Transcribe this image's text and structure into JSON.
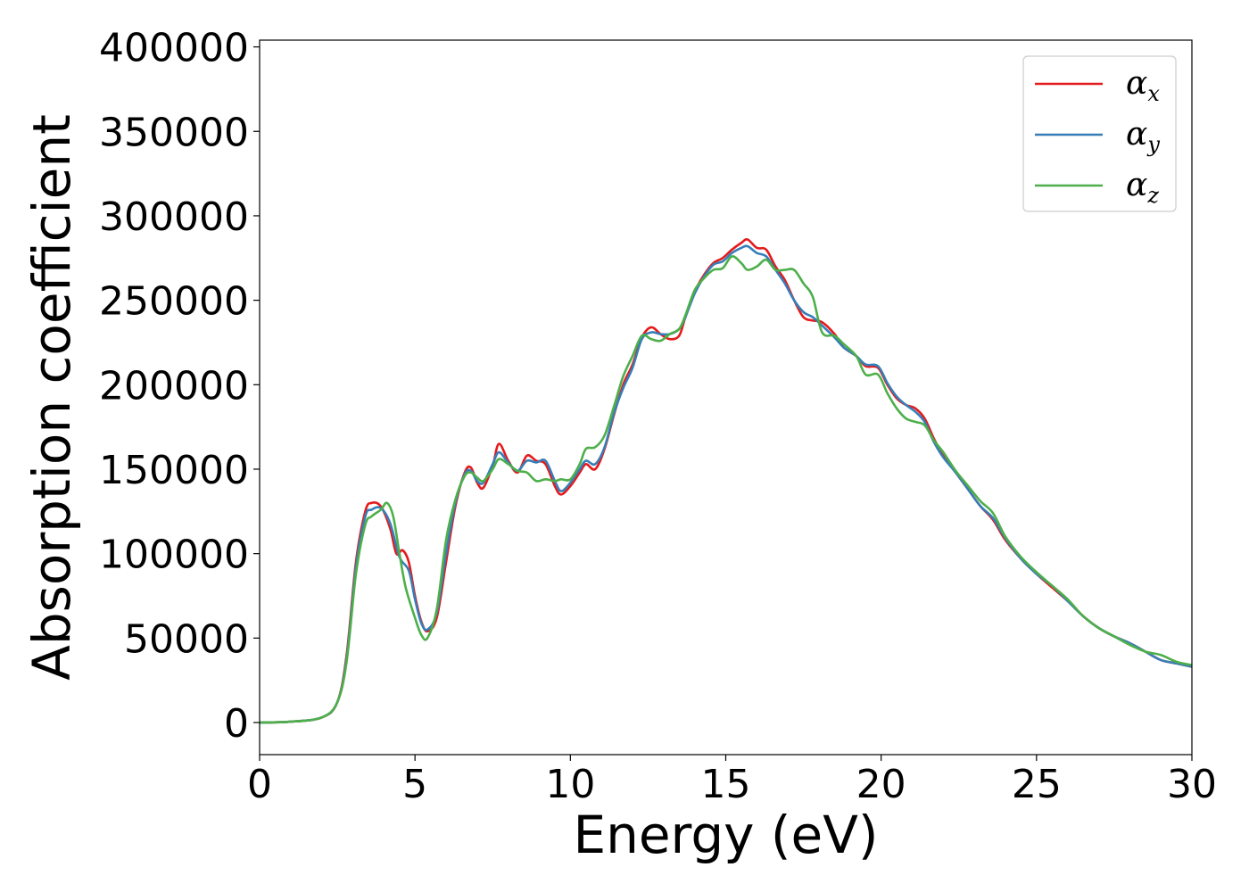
{
  "chart_data": {
    "type": "line",
    "xlabel": "Energy (eV)",
    "ylabel": "Absorption coefficient",
    "xlim": [
      0,
      30
    ],
    "ylim": [
      -19000,
      404000
    ],
    "xticks": [
      0,
      5,
      10,
      15,
      20,
      25,
      30
    ],
    "yticks": [
      0,
      50000,
      100000,
      150000,
      200000,
      250000,
      300000,
      350000,
      400000
    ],
    "grid": false,
    "legend_position": "top-right",
    "series": [
      {
        "name": "α",
        "subscript": "x",
        "color": "#e41a1c",
        "points": [
          [
            0,
            0
          ],
          [
            1,
            500
          ],
          [
            2,
            3000
          ],
          [
            2.5,
            12000
          ],
          [
            2.8,
            40000
          ],
          [
            3.1,
            95000
          ],
          [
            3.4,
            125000
          ],
          [
            3.6,
            130000
          ],
          [
            3.9,
            128000
          ],
          [
            4.2,
            115000
          ],
          [
            4.4,
            100000
          ],
          [
            4.6,
            102000
          ],
          [
            4.8,
            95000
          ],
          [
            5.0,
            75000
          ],
          [
            5.2,
            60000
          ],
          [
            5.4,
            54000
          ],
          [
            5.7,
            62000
          ],
          [
            6.0,
            95000
          ],
          [
            6.3,
            128000
          ],
          [
            6.6,
            148000
          ],
          [
            6.8,
            151000
          ],
          [
            7.0,
            142000
          ],
          [
            7.2,
            139000
          ],
          [
            7.5,
            152000
          ],
          [
            7.7,
            165000
          ],
          [
            8.0,
            155000
          ],
          [
            8.3,
            148000
          ],
          [
            8.6,
            158000
          ],
          [
            8.9,
            155000
          ],
          [
            9.2,
            153000
          ],
          [
            9.5,
            140000
          ],
          [
            9.7,
            135000
          ],
          [
            10.0,
            140000
          ],
          [
            10.3,
            148000
          ],
          [
            10.5,
            153000
          ],
          [
            10.8,
            150000
          ],
          [
            11.1,
            162000
          ],
          [
            11.4,
            182000
          ],
          [
            11.7,
            200000
          ],
          [
            12.0,
            212000
          ],
          [
            12.3,
            228000
          ],
          [
            12.6,
            234000
          ],
          [
            12.9,
            230000
          ],
          [
            13.2,
            227000
          ],
          [
            13.5,
            229000
          ],
          [
            13.7,
            240000
          ],
          [
            14.0,
            255000
          ],
          [
            14.3,
            265000
          ],
          [
            14.6,
            272000
          ],
          [
            14.9,
            275000
          ],
          [
            15.2,
            280000
          ],
          [
            15.5,
            284000
          ],
          [
            15.7,
            286000
          ],
          [
            16.0,
            281000
          ],
          [
            16.3,
            280000
          ],
          [
            16.6,
            270000
          ],
          [
            16.9,
            262000
          ],
          [
            17.2,
            250000
          ],
          [
            17.5,
            240000
          ],
          [
            17.8,
            238000
          ],
          [
            18.1,
            237000
          ],
          [
            18.5,
            230000
          ],
          [
            18.8,
            222000
          ],
          [
            19.2,
            217000
          ],
          [
            19.5,
            211000
          ],
          [
            19.9,
            210000
          ],
          [
            20.2,
            200000
          ],
          [
            20.5,
            192000
          ],
          [
            20.8,
            188000
          ],
          [
            21.1,
            186000
          ],
          [
            21.4,
            180000
          ],
          [
            21.7,
            168000
          ],
          [
            22.0,
            158000
          ],
          [
            22.4,
            148000
          ],
          [
            22.8,
            138000
          ],
          [
            23.2,
            128000
          ],
          [
            23.6,
            120000
          ],
          [
            24.0,
            108000
          ],
          [
            24.5,
            97000
          ],
          [
            25.0,
            88000
          ],
          [
            25.5,
            80000
          ],
          [
            26.0,
            72000
          ],
          [
            26.5,
            63000
          ],
          [
            27.0,
            56000
          ],
          [
            27.5,
            51000
          ],
          [
            28.0,
            47000
          ],
          [
            28.5,
            42000
          ],
          [
            29.0,
            37000
          ],
          [
            29.5,
            35000
          ],
          [
            30.0,
            33000
          ]
        ]
      },
      {
        "name": "α",
        "subscript": "y",
        "color": "#377eb8",
        "points": [
          [
            0,
            0
          ],
          [
            1,
            500
          ],
          [
            2,
            3000
          ],
          [
            2.5,
            12000
          ],
          [
            2.8,
            38000
          ],
          [
            3.1,
            92000
          ],
          [
            3.4,
            122000
          ],
          [
            3.6,
            126000
          ],
          [
            3.9,
            127000
          ],
          [
            4.2,
            118000
          ],
          [
            4.5,
            98000
          ],
          [
            4.8,
            90000
          ],
          [
            5.0,
            73000
          ],
          [
            5.2,
            59000
          ],
          [
            5.4,
            55000
          ],
          [
            5.7,
            65000
          ],
          [
            6.0,
            100000
          ],
          [
            6.3,
            130000
          ],
          [
            6.6,
            147000
          ],
          [
            6.8,
            149000
          ],
          [
            7.0,
            143000
          ],
          [
            7.2,
            142000
          ],
          [
            7.5,
            153000
          ],
          [
            7.7,
            160000
          ],
          [
            8.0,
            154000
          ],
          [
            8.3,
            149000
          ],
          [
            8.6,
            155000
          ],
          [
            8.9,
            154000
          ],
          [
            9.2,
            155000
          ],
          [
            9.5,
            143000
          ],
          [
            9.7,
            137000
          ],
          [
            10.0,
            142000
          ],
          [
            10.3,
            150000
          ],
          [
            10.5,
            155000
          ],
          [
            10.8,
            153000
          ],
          [
            11.1,
            163000
          ],
          [
            11.4,
            183000
          ],
          [
            11.7,
            198000
          ],
          [
            12.0,
            210000
          ],
          [
            12.3,
            227000
          ],
          [
            12.6,
            231000
          ],
          [
            12.9,
            230000
          ],
          [
            13.2,
            230000
          ],
          [
            13.5,
            233000
          ],
          [
            13.7,
            240000
          ],
          [
            14.0,
            254000
          ],
          [
            14.3,
            264000
          ],
          [
            14.6,
            271000
          ],
          [
            14.9,
            273000
          ],
          [
            15.2,
            278000
          ],
          [
            15.5,
            281000
          ],
          [
            15.7,
            282000
          ],
          [
            16.0,
            278000
          ],
          [
            16.3,
            276000
          ],
          [
            16.6,
            268000
          ],
          [
            16.9,
            260000
          ],
          [
            17.2,
            250000
          ],
          [
            17.5,
            243000
          ],
          [
            17.8,
            240000
          ],
          [
            18.1,
            235000
          ],
          [
            18.5,
            228000
          ],
          [
            18.8,
            222000
          ],
          [
            19.2,
            217000
          ],
          [
            19.5,
            212000
          ],
          [
            19.9,
            211000
          ],
          [
            20.2,
            201000
          ],
          [
            20.5,
            193000
          ],
          [
            20.8,
            188000
          ],
          [
            21.1,
            184000
          ],
          [
            21.4,
            178000
          ],
          [
            21.7,
            166000
          ],
          [
            22.0,
            157000
          ],
          [
            22.4,
            148000
          ],
          [
            22.8,
            138000
          ],
          [
            23.2,
            128000
          ],
          [
            23.6,
            121000
          ],
          [
            24.0,
            109000
          ],
          [
            24.5,
            97000
          ],
          [
            25.0,
            88000
          ],
          [
            25.5,
            81000
          ],
          [
            26.0,
            72000
          ],
          [
            26.5,
            63000
          ],
          [
            27.0,
            56000
          ],
          [
            27.5,
            51000
          ],
          [
            28.0,
            47000
          ],
          [
            28.5,
            42000
          ],
          [
            29.0,
            37000
          ],
          [
            29.5,
            35000
          ],
          [
            30.0,
            33000
          ]
        ]
      },
      {
        "name": "α",
        "subscript": "z",
        "color": "#4daf4a",
        "points": [
          [
            0,
            0
          ],
          [
            1,
            500
          ],
          [
            2,
            3000
          ],
          [
            2.5,
            12000
          ],
          [
            2.8,
            36000
          ],
          [
            3.1,
            88000
          ],
          [
            3.4,
            117000
          ],
          [
            3.6,
            122000
          ],
          [
            3.9,
            126000
          ],
          [
            4.1,
            130000
          ],
          [
            4.3,
            122000
          ],
          [
            4.5,
            100000
          ],
          [
            4.7,
            80000
          ],
          [
            5.0,
            62000
          ],
          [
            5.2,
            52000
          ],
          [
            5.4,
            50000
          ],
          [
            5.7,
            67000
          ],
          [
            6.0,
            108000
          ],
          [
            6.3,
            132000
          ],
          [
            6.6,
            146000
          ],
          [
            6.8,
            148000
          ],
          [
            7.0,
            145000
          ],
          [
            7.2,
            143000
          ],
          [
            7.5,
            150000
          ],
          [
            7.7,
            156000
          ],
          [
            8.0,
            153000
          ],
          [
            8.3,
            149000
          ],
          [
            8.6,
            148000
          ],
          [
            8.9,
            143000
          ],
          [
            9.2,
            144000
          ],
          [
            9.5,
            143000
          ],
          [
            9.7,
            144000
          ],
          [
            10.0,
            144000
          ],
          [
            10.3,
            153000
          ],
          [
            10.5,
            162000
          ],
          [
            10.8,
            163000
          ],
          [
            11.1,
            170000
          ],
          [
            11.4,
            187000
          ],
          [
            11.7,
            205000
          ],
          [
            12.0,
            217000
          ],
          [
            12.3,
            229000
          ],
          [
            12.6,
            227000
          ],
          [
            12.9,
            226000
          ],
          [
            13.2,
            230000
          ],
          [
            13.5,
            233000
          ],
          [
            13.7,
            241000
          ],
          [
            14.0,
            256000
          ],
          [
            14.3,
            263000
          ],
          [
            14.6,
            268000
          ],
          [
            14.9,
            269000
          ],
          [
            15.2,
            276000
          ],
          [
            15.5,
            272000
          ],
          [
            15.7,
            268000
          ],
          [
            16.0,
            270000
          ],
          [
            16.3,
            274000
          ],
          [
            16.6,
            268000
          ],
          [
            16.9,
            268000
          ],
          [
            17.2,
            268000
          ],
          [
            17.5,
            260000
          ],
          [
            17.8,
            252000
          ],
          [
            18.1,
            231000
          ],
          [
            18.5,
            229000
          ],
          [
            18.8,
            224000
          ],
          [
            19.2,
            217000
          ],
          [
            19.5,
            206000
          ],
          [
            19.9,
            206000
          ],
          [
            20.2,
            195000
          ],
          [
            20.5,
            186000
          ],
          [
            20.8,
            180000
          ],
          [
            21.1,
            178000
          ],
          [
            21.4,
            176000
          ],
          [
            21.7,
            167000
          ],
          [
            22.0,
            160000
          ],
          [
            22.4,
            149000
          ],
          [
            22.8,
            140000
          ],
          [
            23.2,
            131000
          ],
          [
            23.6,
            124000
          ],
          [
            24.0,
            110000
          ],
          [
            24.5,
            98000
          ],
          [
            25.0,
            89000
          ],
          [
            25.5,
            81000
          ],
          [
            26.0,
            73000
          ],
          [
            26.5,
            63000
          ],
          [
            27.0,
            56000
          ],
          [
            27.5,
            51000
          ],
          [
            28.0,
            46000
          ],
          [
            28.5,
            42000
          ],
          [
            29.0,
            40000
          ],
          [
            29.5,
            36000
          ],
          [
            30.0,
            34000
          ]
        ]
      }
    ]
  }
}
